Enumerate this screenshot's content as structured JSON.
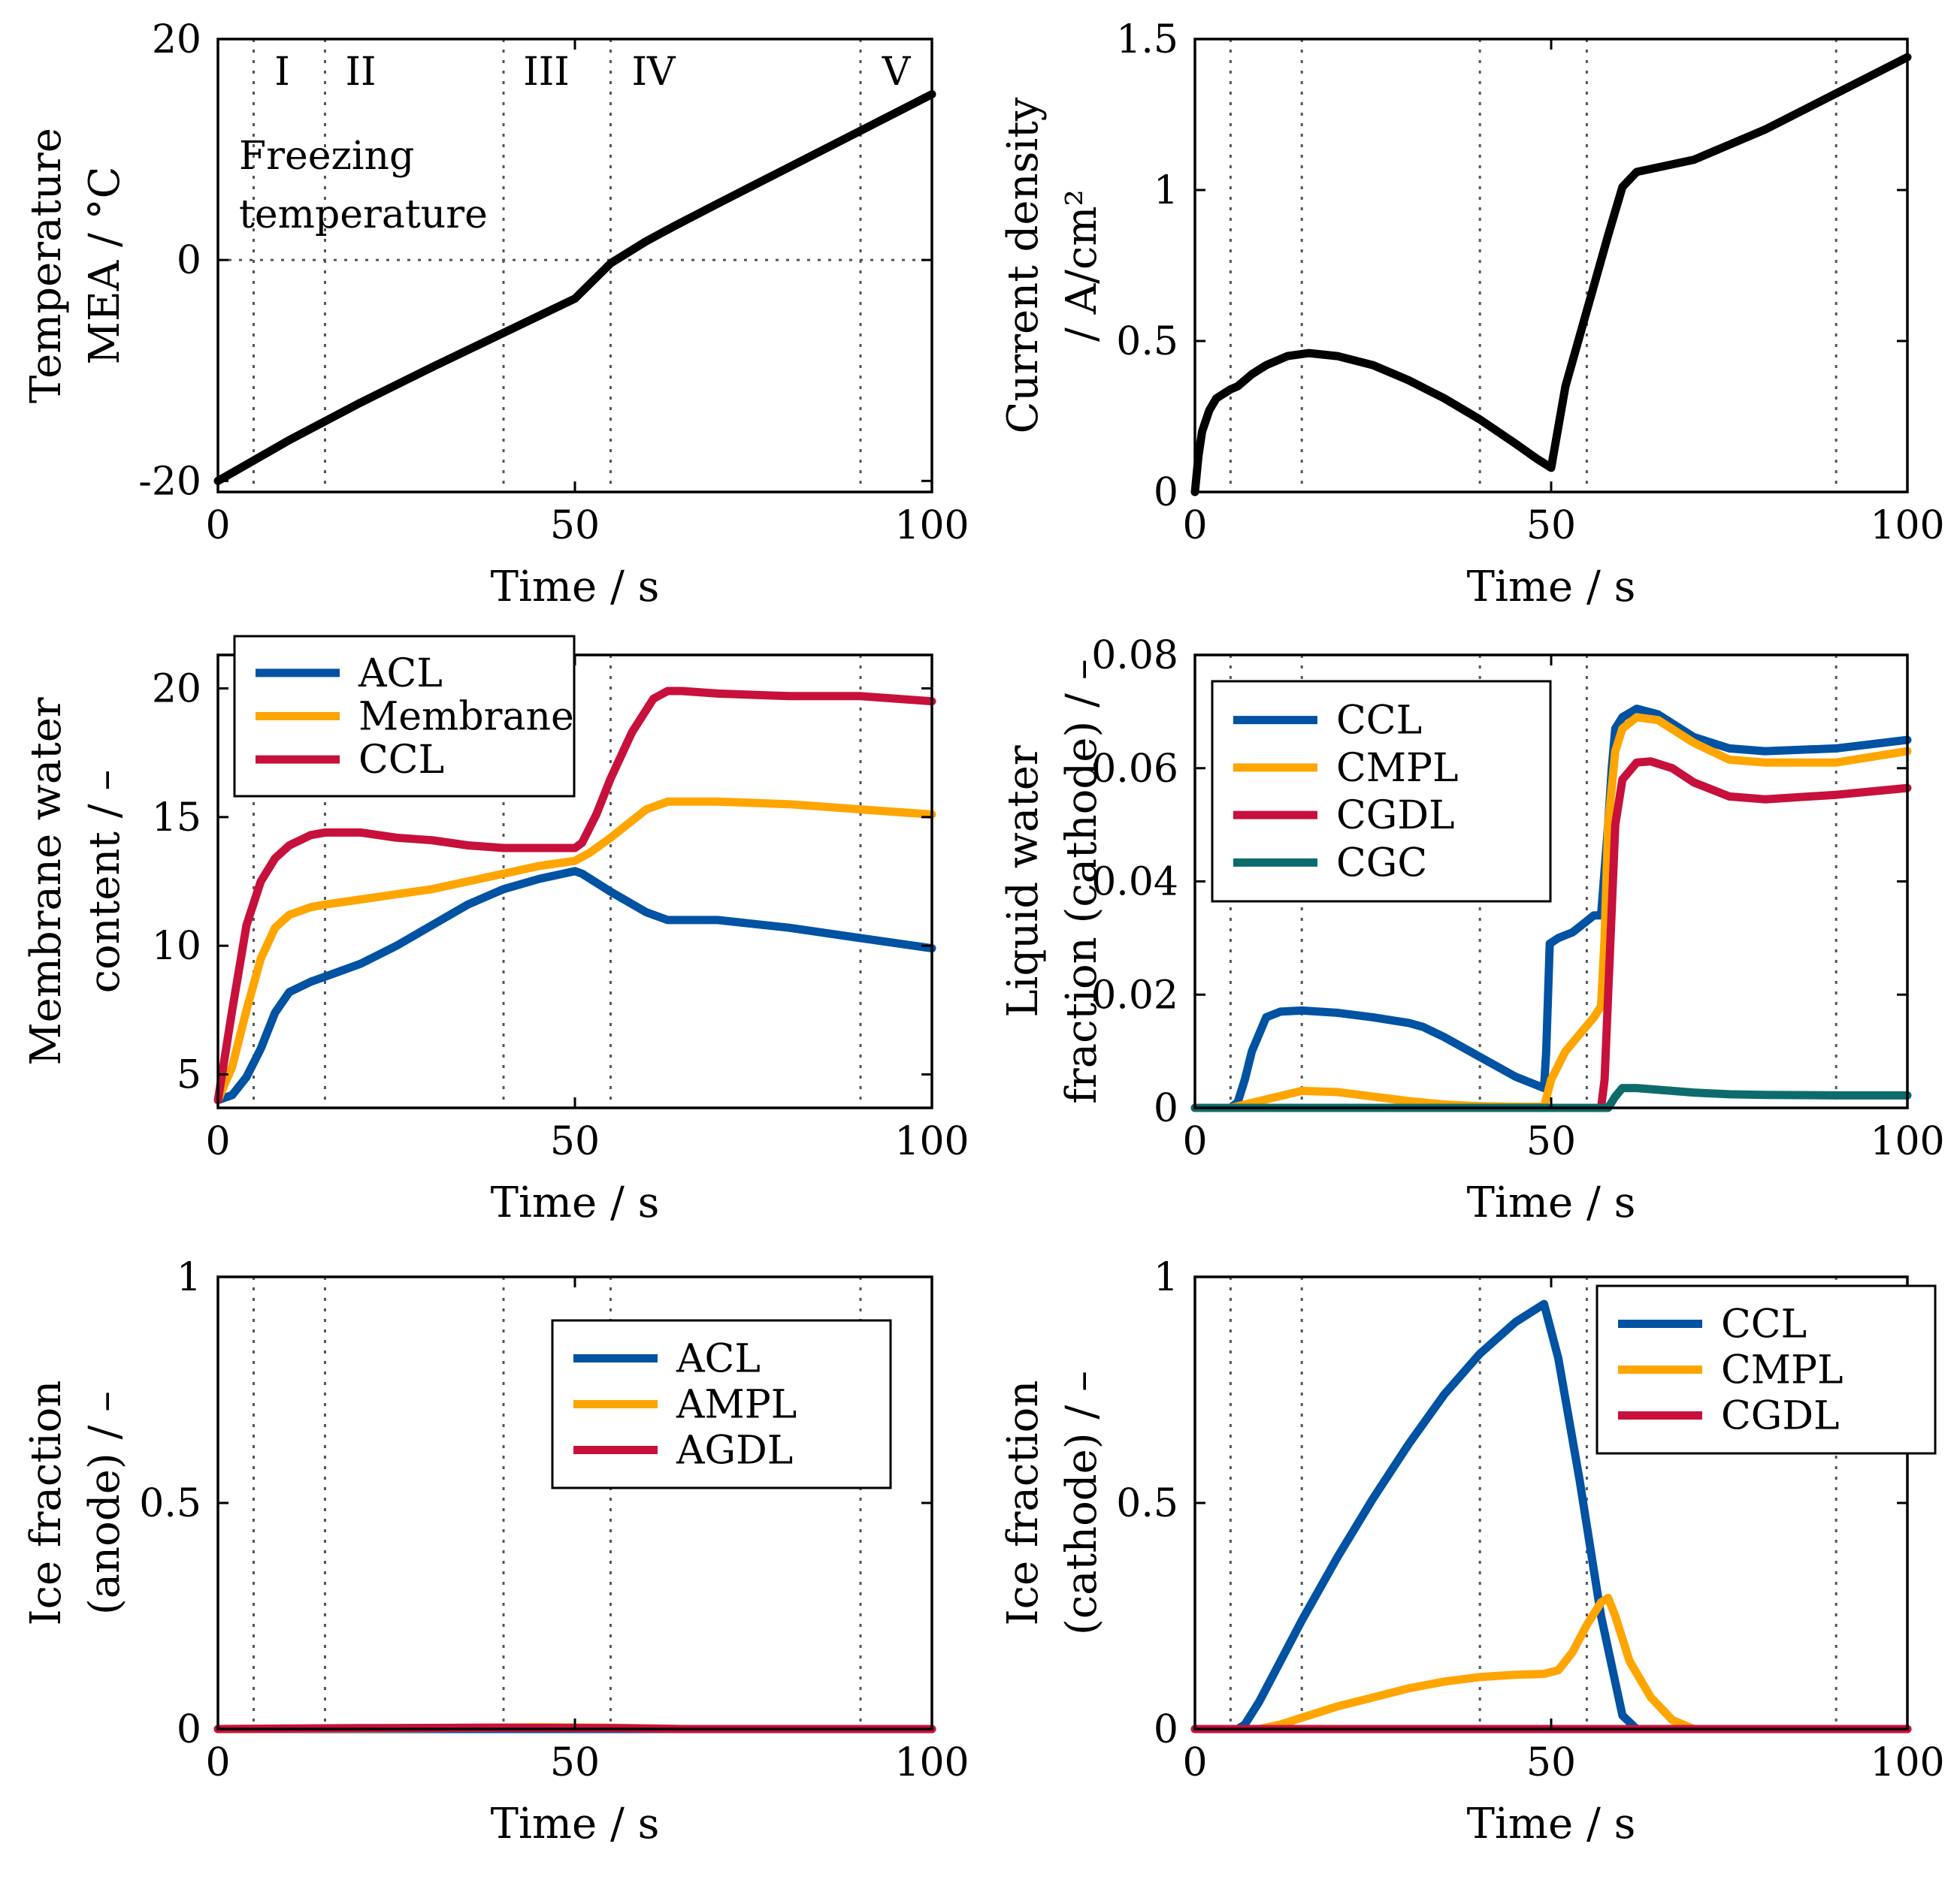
{
  "colors": {
    "black": "#000000",
    "blue": "#0052a3",
    "orange": "#ffa500",
    "red": "#c8103c",
    "teal": "#0e6b6b",
    "grid": "#555555"
  },
  "phase_lines": [
    5,
    15,
    40,
    55,
    90
  ],
  "chart_data": [
    {
      "id": "temperature",
      "type": "line",
      "xlabel": "Time / s",
      "ylabel": [
        "Temperature",
        "MEA / °C"
      ],
      "xlim": [
        0,
        100
      ],
      "ylim": [
        -21,
        20
      ],
      "xticks": [
        0,
        50,
        100
      ],
      "yticks": [
        -20,
        0,
        20
      ],
      "ytick_labels": [
        "-20",
        "0",
        "20"
      ],
      "phase_labels": [
        {
          "label": "I",
          "x": 9
        },
        {
          "label": "II",
          "x": 20
        },
        {
          "label": "III",
          "x": 46
        },
        {
          "label": "IV",
          "x": 61
        },
        {
          "label": "V",
          "x": 95
        }
      ],
      "reference_line": {
        "y": 0,
        "label": [
          "Freezing",
          "temperature"
        ]
      },
      "series": [
        {
          "name": "MEA temperature",
          "color": "black",
          "x": [
            0,
            10,
            20,
            30,
            40,
            50,
            55,
            60,
            64,
            70,
            80,
            90,
            100
          ],
          "y": [
            -20,
            -16.3,
            -12.9,
            -9.7,
            -6.6,
            -3.5,
            -0.3,
            1.7,
            3.1,
            5.1,
            8.4,
            11.7,
            15
          ]
        }
      ]
    },
    {
      "id": "current_density",
      "type": "line",
      "xlabel": "Time / s",
      "ylabel": [
        "Current density",
        "/ A/cm²"
      ],
      "xlim": [
        0,
        100
      ],
      "ylim": [
        0,
        1.5
      ],
      "xticks": [
        0,
        50,
        100
      ],
      "yticks": [
        0,
        0.5,
        1,
        1.5
      ],
      "ytick_labels": [
        "0",
        "0.5",
        "1",
        "1.5"
      ],
      "series": [
        {
          "name": "Current density",
          "color": "black",
          "x": [
            0,
            0.5,
            1,
            2,
            3,
            5,
            6,
            8,
            10,
            13,
            16,
            20,
            25,
            30,
            35,
            40,
            45,
            48,
            50,
            52,
            55,
            58,
            60,
            62,
            64,
            70,
            80,
            90,
            100
          ],
          "y": [
            0,
            0.12,
            0.2,
            0.27,
            0.31,
            0.34,
            0.35,
            0.39,
            0.42,
            0.45,
            0.46,
            0.45,
            0.42,
            0.37,
            0.31,
            0.24,
            0.16,
            0.11,
            0.08,
            0.35,
            0.6,
            0.85,
            1.01,
            1.06,
            1.07,
            1.1,
            1.2,
            1.32,
            1.44
          ]
        }
      ]
    },
    {
      "id": "membrane_water",
      "type": "line",
      "xlabel": "Time / s",
      "ylabel": [
        "Membrane water",
        "content / –"
      ],
      "xlim": [
        0,
        100
      ],
      "ylim": [
        3.7,
        21.3
      ],
      "xticks": [
        0,
        50,
        100
      ],
      "yticks": [
        5,
        10,
        15,
        20
      ],
      "ytick_labels": [
        "5",
        "10",
        "15",
        "20"
      ],
      "legend": {
        "position": "top-left",
        "entries": [
          "ACL",
          "Membrane",
          "CCL"
        ]
      },
      "series": [
        {
          "name": "ACL",
          "color": "blue",
          "x": [
            0,
            2,
            4,
            6,
            8,
            10,
            13,
            15,
            20,
            25,
            30,
            35,
            40,
            45,
            50,
            51,
            55,
            60,
            63,
            65,
            70,
            80,
            90,
            100
          ],
          "y": [
            4,
            4.2,
            4.9,
            6,
            7.4,
            8.2,
            8.6,
            8.8,
            9.3,
            10,
            10.8,
            11.6,
            12.2,
            12.6,
            12.9,
            12.8,
            12.1,
            11.3,
            11,
            11,
            11,
            10.7,
            10.3,
            9.9
          ]
        },
        {
          "name": "Membrane",
          "color": "orange",
          "x": [
            0,
            2,
            4,
            6,
            8,
            10,
            13,
            15,
            20,
            25,
            30,
            35,
            40,
            45,
            50,
            52,
            55,
            60,
            63,
            65,
            70,
            80,
            90,
            100
          ],
          "y": [
            4,
            5.3,
            7.5,
            9.5,
            10.7,
            11.2,
            11.5,
            11.6,
            11.8,
            12,
            12.2,
            12.5,
            12.8,
            13.1,
            13.3,
            13.6,
            14.2,
            15.3,
            15.6,
            15.6,
            15.6,
            15.5,
            15.3,
            15.1
          ]
        },
        {
          "name": "CCL",
          "color": "red",
          "x": [
            0,
            2,
            4,
            6,
            8,
            10,
            13,
            15,
            20,
            25,
            30,
            35,
            40,
            45,
            50,
            51,
            53,
            55,
            58,
            61,
            63,
            65,
            70,
            80,
            90,
            100
          ],
          "y": [
            4,
            7.5,
            10.8,
            12.5,
            13.4,
            13.9,
            14.3,
            14.4,
            14.4,
            14.2,
            14.1,
            13.9,
            13.8,
            13.8,
            13.8,
            14,
            15.1,
            16.5,
            18.3,
            19.6,
            19.9,
            19.9,
            19.8,
            19.7,
            19.7,
            19.5
          ]
        }
      ]
    },
    {
      "id": "liquid_water_cathode",
      "type": "line",
      "xlabel": "Time / s",
      "ylabel": [
        "Liquid water",
        "fraction (cathode) / –"
      ],
      "xlim": [
        0,
        100
      ],
      "ylim": [
        0,
        0.08
      ],
      "xticks": [
        0,
        50,
        100
      ],
      "yticks": [
        0,
        0.02,
        0.04,
        0.06,
        0.08
      ],
      "ytick_labels": [
        "0",
        "0.02",
        "0.04",
        "0.06",
        "0.08"
      ],
      "legend": {
        "position": "top-left",
        "entries": [
          "CCL",
          "CMPL",
          "CGDL",
          "CGC"
        ]
      },
      "series": [
        {
          "name": "CCL",
          "color": "blue",
          "x": [
            0,
            5,
            6,
            7,
            8,
            9,
            10,
            12,
            15,
            20,
            25,
            30,
            32,
            35,
            40,
            45,
            49,
            49.3,
            49.8,
            51,
            53,
            55,
            56,
            57,
            58,
            58.5,
            59,
            60,
            62,
            65,
            70,
            75,
            80,
            90,
            100
          ],
          "y": [
            0,
            0,
            0.001,
            0.005,
            0.01,
            0.013,
            0.016,
            0.017,
            0.0172,
            0.0168,
            0.016,
            0.015,
            0.0143,
            0.0125,
            0.009,
            0.0055,
            0.0035,
            0.01,
            0.029,
            0.03,
            0.031,
            0.033,
            0.034,
            0.034,
            0.05,
            0.06,
            0.067,
            0.069,
            0.0705,
            0.0695,
            0.0655,
            0.0635,
            0.063,
            0.0635,
            0.065
          ]
        },
        {
          "name": "CMPL",
          "color": "orange",
          "x": [
            0,
            5,
            10,
            15,
            20,
            25,
            30,
            35,
            40,
            45,
            49,
            50,
            52,
            54,
            56,
            57,
            57.5,
            58,
            59,
            60,
            62,
            65,
            70,
            75,
            80,
            90,
            100
          ],
          "y": [
            0,
            0,
            0.0015,
            0.003,
            0.0028,
            0.002,
            0.0012,
            0.0006,
            0.0003,
            0.0002,
            0.0002,
            0.005,
            0.01,
            0.013,
            0.016,
            0.018,
            0.03,
            0.05,
            0.063,
            0.067,
            0.069,
            0.0685,
            0.0645,
            0.0615,
            0.061,
            0.061,
            0.063
          ]
        },
        {
          "name": "CGDL",
          "color": "red",
          "x": [
            0,
            57,
            57.5,
            58,
            58.5,
            59,
            60,
            62,
            64,
            67,
            70,
            75,
            80,
            90,
            100
          ],
          "y": [
            0,
            0,
            0.005,
            0.02,
            0.035,
            0.05,
            0.058,
            0.061,
            0.0612,
            0.06,
            0.0575,
            0.055,
            0.0545,
            0.0553,
            0.0565
          ]
        },
        {
          "name": "CGC",
          "color": "teal",
          "x": [
            0,
            58,
            59,
            60,
            62,
            65,
            70,
            75,
            80,
            90,
            100
          ],
          "y": [
            0,
            0,
            0.002,
            0.0035,
            0.0035,
            0.0032,
            0.0027,
            0.0024,
            0.0023,
            0.0022,
            0.0022
          ]
        }
      ]
    },
    {
      "id": "ice_anode",
      "type": "line",
      "xlabel": "Time / s",
      "ylabel": [
        "Ice fraction",
        "(anode) / –"
      ],
      "xlim": [
        0,
        100
      ],
      "ylim": [
        0,
        1
      ],
      "xticks": [
        0,
        50,
        100
      ],
      "yticks": [
        0,
        0.5,
        1
      ],
      "ytick_labels": [
        "0",
        "0.5",
        "1"
      ],
      "legend": {
        "position": "top-right",
        "entries": [
          "ACL",
          "AMPL",
          "AGDL"
        ]
      },
      "series": [
        {
          "name": "ACL",
          "color": "blue",
          "x": [
            0,
            100
          ],
          "y": [
            0,
            0
          ]
        },
        {
          "name": "AMPL",
          "color": "orange",
          "x": [
            0,
            30,
            45,
            55,
            65,
            100
          ],
          "y": [
            0,
            0.002,
            0.004,
            0.003,
            0,
            0
          ]
        },
        {
          "name": "AGDL",
          "color": "red",
          "x": [
            0,
            20,
            40,
            55,
            65,
            100
          ],
          "y": [
            0,
            0.002,
            0.003,
            0.002,
            0,
            0
          ]
        }
      ]
    },
    {
      "id": "ice_cathode",
      "type": "line",
      "xlabel": "Time / s",
      "ylabel": [
        "Ice fraction",
        "(cathode) / –"
      ],
      "xlim": [
        0,
        100
      ],
      "ylim": [
        0,
        1
      ],
      "xticks": [
        0,
        50,
        100
      ],
      "yticks": [
        0,
        0.5,
        1
      ],
      "ytick_labels": [
        "0",
        "0.5",
        "1"
      ],
      "legend": {
        "position": "top-right",
        "entries": [
          "CCL",
          "CMPL",
          "CGDL"
        ]
      },
      "series": [
        {
          "name": "CCL",
          "color": "blue",
          "x": [
            0,
            6,
            7,
            9,
            12,
            15,
            20,
            25,
            30,
            35,
            40,
            45,
            49,
            51,
            54,
            57,
            60,
            62,
            64,
            100
          ],
          "y": [
            0,
            0,
            0.01,
            0.06,
            0.15,
            0.24,
            0.38,
            0.51,
            0.63,
            0.74,
            0.83,
            0.9,
            0.94,
            0.82,
            0.55,
            0.25,
            0.03,
            0,
            0,
            0
          ]
        },
        {
          "name": "CMPL",
          "color": "orange",
          "x": [
            0,
            9,
            12,
            15,
            20,
            25,
            30,
            35,
            40,
            45,
            49,
            51,
            53,
            55,
            57,
            58,
            59,
            61,
            64,
            67,
            70,
            100
          ],
          "y": [
            0,
            0,
            0.01,
            0.025,
            0.05,
            0.07,
            0.09,
            0.105,
            0.115,
            0.12,
            0.122,
            0.13,
            0.17,
            0.23,
            0.28,
            0.29,
            0.25,
            0.15,
            0.07,
            0.02,
            0,
            0
          ]
        },
        {
          "name": "CGDL",
          "color": "red",
          "x": [
            0,
            100
          ],
          "y": [
            0,
            0
          ]
        }
      ]
    }
  ]
}
